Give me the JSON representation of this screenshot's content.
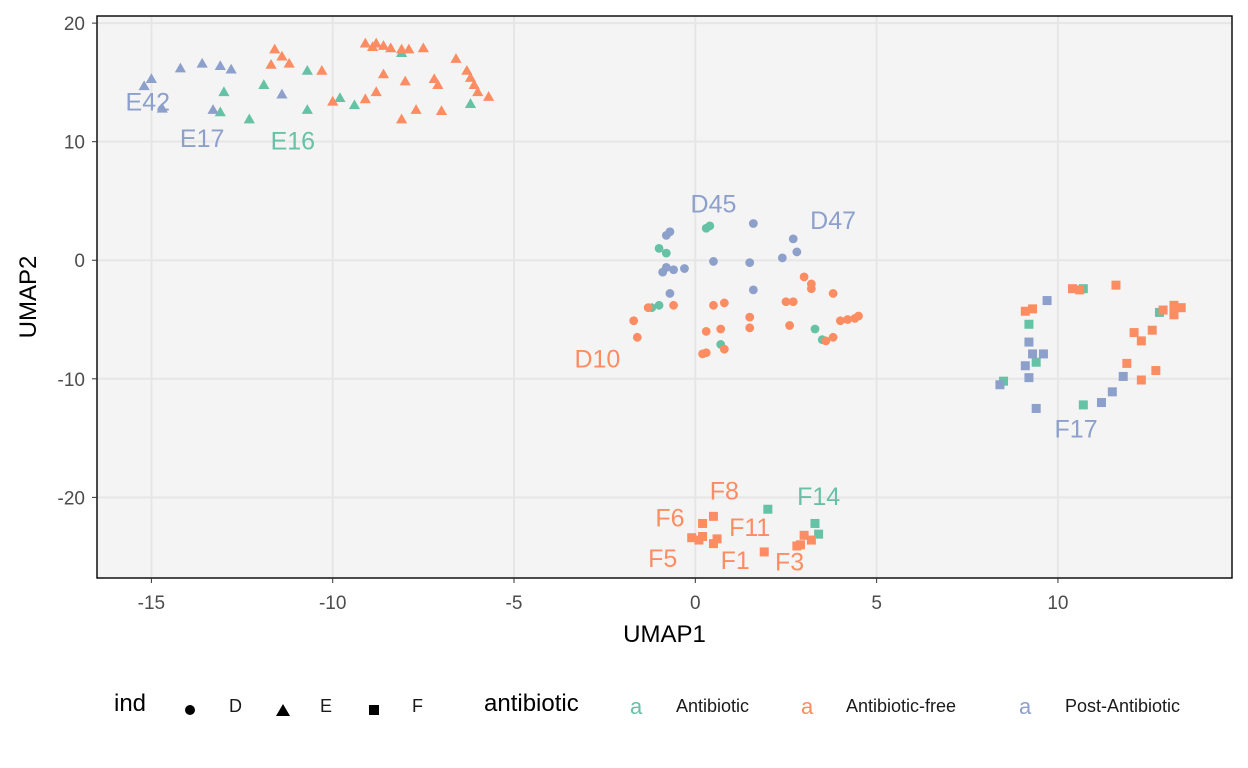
{
  "colors": {
    "Antibiotic": "#66c2a5",
    "Antibiotic-free": "#fc8d62",
    "Post-Antibiotic": "#8da0cb",
    "panel_bg": "#f4f4f4",
    "grid": "#e6e6e6"
  },
  "chart_data": {
    "type": "scatter",
    "title": "",
    "xlabel": "UMAP1",
    "ylabel": "UMAP2",
    "xlim": [
      -16.5,
      14.8
    ],
    "ylim": [
      -26.8,
      20.6
    ],
    "xticks": [
      -15,
      -10,
      -5,
      0,
      5,
      10
    ],
    "yticks": [
      20,
      10,
      0,
      -10,
      -20
    ],
    "xtick_labels": [
      "-15",
      "-10",
      "-5",
      "0",
      "5",
      "10"
    ],
    "ytick_labels": [
      "20",
      "10",
      "0",
      "-10",
      "-20"
    ],
    "grid": true,
    "legend_position": "bottom",
    "shape_legend": {
      "title": "ind",
      "entries": [
        "D",
        "E",
        "F"
      ]
    },
    "color_legend": {
      "title": "antibiotic",
      "key_glyph": "a",
      "entries": [
        "Antibiotic",
        "Antibiotic-free",
        "Post-Antibiotic"
      ]
    },
    "points": [
      {
        "x": 0.4,
        "y": 2.9,
        "ind": "D",
        "group": "Antibiotic"
      },
      {
        "x": 0.3,
        "y": 2.7,
        "ind": "D",
        "group": "Antibiotic"
      },
      {
        "x": -1.0,
        "y": 1.0,
        "ind": "D",
        "group": "Antibiotic"
      },
      {
        "x": -0.8,
        "y": 0.6,
        "ind": "D",
        "group": "Antibiotic"
      },
      {
        "x": -1.0,
        "y": -3.8,
        "ind": "D",
        "group": "Antibiotic"
      },
      {
        "x": -1.2,
        "y": -4.0,
        "ind": "D",
        "group": "Antibiotic"
      },
      {
        "x": 0.7,
        "y": -7.1,
        "ind": "D",
        "group": "Antibiotic"
      },
      {
        "x": 3.3,
        "y": -5.8,
        "ind": "D",
        "group": "Antibiotic"
      },
      {
        "x": 3.5,
        "y": -6.7,
        "ind": "D",
        "group": "Antibiotic"
      },
      {
        "x": 1.6,
        "y": 3.1,
        "ind": "D",
        "group": "Post-Antibiotic"
      },
      {
        "x": -0.7,
        "y": 2.4,
        "ind": "D",
        "group": "Post-Antibiotic"
      },
      {
        "x": -0.8,
        "y": 2.1,
        "ind": "D",
        "group": "Post-Antibiotic"
      },
      {
        "x": 2.7,
        "y": 1.8,
        "ind": "D",
        "group": "Post-Antibiotic"
      },
      {
        "x": 2.8,
        "y": 0.7,
        "ind": "D",
        "group": "Post-Antibiotic"
      },
      {
        "x": 2.4,
        "y": 0.2,
        "ind": "D",
        "group": "Post-Antibiotic"
      },
      {
        "x": 0.5,
        "y": -0.1,
        "ind": "D",
        "group": "Post-Antibiotic"
      },
      {
        "x": 1.5,
        "y": -0.2,
        "ind": "D",
        "group": "Post-Antibiotic"
      },
      {
        "x": -0.8,
        "y": -0.6,
        "ind": "D",
        "group": "Post-Antibiotic"
      },
      {
        "x": -0.6,
        "y": -0.8,
        "ind": "D",
        "group": "Post-Antibiotic"
      },
      {
        "x": -0.3,
        "y": -0.7,
        "ind": "D",
        "group": "Post-Antibiotic"
      },
      {
        "x": -0.9,
        "y": -1.0,
        "ind": "D",
        "group": "Post-Antibiotic"
      },
      {
        "x": -0.7,
        "y": -2.8,
        "ind": "D",
        "group": "Post-Antibiotic"
      },
      {
        "x": 1.6,
        "y": -2.5,
        "ind": "D",
        "group": "Post-Antibiotic"
      },
      {
        "x": 3.0,
        "y": -1.4,
        "ind": "D",
        "group": "Antibiotic-free"
      },
      {
        "x": 3.2,
        "y": -2.0,
        "ind": "D",
        "group": "Antibiotic-free"
      },
      {
        "x": 3.2,
        "y": -2.4,
        "ind": "D",
        "group": "Antibiotic-free"
      },
      {
        "x": 3.8,
        "y": -2.8,
        "ind": "D",
        "group": "Antibiotic-free"
      },
      {
        "x": 2.5,
        "y": -3.5,
        "ind": "D",
        "group": "Antibiotic-free"
      },
      {
        "x": 2.7,
        "y": -3.5,
        "ind": "D",
        "group": "Antibiotic-free"
      },
      {
        "x": 0.8,
        "y": -3.6,
        "ind": "D",
        "group": "Antibiotic-free"
      },
      {
        "x": 0.5,
        "y": -3.8,
        "ind": "D",
        "group": "Antibiotic-free"
      },
      {
        "x": -0.6,
        "y": -3.8,
        "ind": "D",
        "group": "Antibiotic-free"
      },
      {
        "x": -1.3,
        "y": -4.0,
        "ind": "D",
        "group": "Antibiotic-free"
      },
      {
        "x": 1.5,
        "y": -4.8,
        "ind": "D",
        "group": "Antibiotic-free"
      },
      {
        "x": -1.7,
        "y": -5.1,
        "ind": "D",
        "group": "Antibiotic-free"
      },
      {
        "x": 4.5,
        "y": -4.7,
        "ind": "D",
        "group": "Antibiotic-free"
      },
      {
        "x": 4.4,
        "y": -4.9,
        "ind": "D",
        "group": "Antibiotic-free"
      },
      {
        "x": 4.2,
        "y": -5.0,
        "ind": "D",
        "group": "Antibiotic-free"
      },
      {
        "x": 4.0,
        "y": -5.1,
        "ind": "D",
        "group": "Antibiotic-free"
      },
      {
        "x": 2.6,
        "y": -5.5,
        "ind": "D",
        "group": "Antibiotic-free"
      },
      {
        "x": 1.5,
        "y": -5.7,
        "ind": "D",
        "group": "Antibiotic-free"
      },
      {
        "x": 0.7,
        "y": -5.8,
        "ind": "D",
        "group": "Antibiotic-free"
      },
      {
        "x": 0.3,
        "y": -6.0,
        "ind": "D",
        "group": "Antibiotic-free"
      },
      {
        "x": 3.8,
        "y": -6.5,
        "ind": "D",
        "group": "Antibiotic-free"
      },
      {
        "x": 3.6,
        "y": -6.8,
        "ind": "D",
        "group": "Antibiotic-free"
      },
      {
        "x": -1.6,
        "y": -6.5,
        "ind": "D",
        "group": "Antibiotic-free"
      },
      {
        "x": 0.8,
        "y": -7.5,
        "ind": "D",
        "group": "Antibiotic-free"
      },
      {
        "x": 0.3,
        "y": -7.8,
        "ind": "D",
        "group": "Antibiotic-free"
      },
      {
        "x": 0.2,
        "y": -7.9,
        "ind": "D",
        "group": "Antibiotic-free"
      },
      {
        "x": -8.1,
        "y": 17.5,
        "ind": "E",
        "group": "Antibiotic"
      },
      {
        "x": -10.7,
        "y": 16.0,
        "ind": "E",
        "group": "Antibiotic"
      },
      {
        "x": -11.9,
        "y": 14.8,
        "ind": "E",
        "group": "Antibiotic"
      },
      {
        "x": -13.0,
        "y": 14.2,
        "ind": "E",
        "group": "Antibiotic"
      },
      {
        "x": -9.8,
        "y": 13.7,
        "ind": "E",
        "group": "Antibiotic"
      },
      {
        "x": -9.4,
        "y": 13.1,
        "ind": "E",
        "group": "Antibiotic"
      },
      {
        "x": -6.2,
        "y": 13.2,
        "ind": "E",
        "group": "Antibiotic"
      },
      {
        "x": -10.7,
        "y": 12.7,
        "ind": "E",
        "group": "Antibiotic"
      },
      {
        "x": -13.1,
        "y": 12.5,
        "ind": "E",
        "group": "Antibiotic"
      },
      {
        "x": -12.3,
        "y": 11.9,
        "ind": "E",
        "group": "Antibiotic"
      },
      {
        "x": -13.6,
        "y": 16.6,
        "ind": "E",
        "group": "Post-Antibiotic"
      },
      {
        "x": -14.2,
        "y": 16.2,
        "ind": "E",
        "group": "Post-Antibiotic"
      },
      {
        "x": -13.1,
        "y": 16.4,
        "ind": "E",
        "group": "Post-Antibiotic"
      },
      {
        "x": -12.8,
        "y": 16.1,
        "ind": "E",
        "group": "Post-Antibiotic"
      },
      {
        "x": -15.0,
        "y": 15.3,
        "ind": "E",
        "group": "Post-Antibiotic"
      },
      {
        "x": -15.2,
        "y": 14.7,
        "ind": "E",
        "group": "Post-Antibiotic"
      },
      {
        "x": -11.4,
        "y": 14.0,
        "ind": "E",
        "group": "Post-Antibiotic"
      },
      {
        "x": -14.7,
        "y": 12.8,
        "ind": "E",
        "group": "Post-Antibiotic"
      },
      {
        "x": -13.3,
        "y": 12.7,
        "ind": "E",
        "group": "Post-Antibiotic"
      },
      {
        "x": -11.6,
        "y": 17.8,
        "ind": "E",
        "group": "Antibiotic-free"
      },
      {
        "x": -11.4,
        "y": 17.2,
        "ind": "E",
        "group": "Antibiotic-free"
      },
      {
        "x": -11.7,
        "y": 16.5,
        "ind": "E",
        "group": "Antibiotic-free"
      },
      {
        "x": -11.2,
        "y": 16.6,
        "ind": "E",
        "group": "Antibiotic-free"
      },
      {
        "x": -9.1,
        "y": 18.3,
        "ind": "E",
        "group": "Antibiotic-free"
      },
      {
        "x": -8.9,
        "y": 18.0,
        "ind": "E",
        "group": "Antibiotic-free"
      },
      {
        "x": -8.8,
        "y": 18.3,
        "ind": "E",
        "group": "Antibiotic-free"
      },
      {
        "x": -8.6,
        "y": 18.1,
        "ind": "E",
        "group": "Antibiotic-free"
      },
      {
        "x": -8.4,
        "y": 17.9,
        "ind": "E",
        "group": "Antibiotic-free"
      },
      {
        "x": -8.1,
        "y": 17.8,
        "ind": "E",
        "group": "Antibiotic-free"
      },
      {
        "x": -7.9,
        "y": 17.8,
        "ind": "E",
        "group": "Antibiotic-free"
      },
      {
        "x": -7.5,
        "y": 17.9,
        "ind": "E",
        "group": "Antibiotic-free"
      },
      {
        "x": -6.6,
        "y": 17.0,
        "ind": "E",
        "group": "Antibiotic-free"
      },
      {
        "x": -10.3,
        "y": 16.0,
        "ind": "E",
        "group": "Antibiotic-free"
      },
      {
        "x": -8.6,
        "y": 15.7,
        "ind": "E",
        "group": "Antibiotic-free"
      },
      {
        "x": -6.3,
        "y": 16.0,
        "ind": "E",
        "group": "Antibiotic-free"
      },
      {
        "x": -6.2,
        "y": 15.4,
        "ind": "E",
        "group": "Antibiotic-free"
      },
      {
        "x": -7.2,
        "y": 15.3,
        "ind": "E",
        "group": "Antibiotic-free"
      },
      {
        "x": -8.0,
        "y": 15.1,
        "ind": "E",
        "group": "Antibiotic-free"
      },
      {
        "x": -7.1,
        "y": 14.8,
        "ind": "E",
        "group": "Antibiotic-free"
      },
      {
        "x": -6.1,
        "y": 14.8,
        "ind": "E",
        "group": "Antibiotic-free"
      },
      {
        "x": -8.8,
        "y": 14.2,
        "ind": "E",
        "group": "Antibiotic-free"
      },
      {
        "x": -6.0,
        "y": 14.2,
        "ind": "E",
        "group": "Antibiotic-free"
      },
      {
        "x": -5.7,
        "y": 13.8,
        "ind": "E",
        "group": "Antibiotic-free"
      },
      {
        "x": -10.0,
        "y": 13.4,
        "ind": "E",
        "group": "Antibiotic-free"
      },
      {
        "x": -9.1,
        "y": 13.6,
        "ind": "E",
        "group": "Antibiotic-free"
      },
      {
        "x": -7.7,
        "y": 12.7,
        "ind": "E",
        "group": "Antibiotic-free"
      },
      {
        "x": -7.0,
        "y": 12.6,
        "ind": "E",
        "group": "Antibiotic-free"
      },
      {
        "x": -8.1,
        "y": 11.9,
        "ind": "E",
        "group": "Antibiotic-free"
      },
      {
        "x": 10.7,
        "y": -2.4,
        "ind": "F",
        "group": "Antibiotic"
      },
      {
        "x": 12.8,
        "y": -4.4,
        "ind": "F",
        "group": "Antibiotic"
      },
      {
        "x": 9.2,
        "y": -5.4,
        "ind": "F",
        "group": "Antibiotic"
      },
      {
        "x": 9.4,
        "y": -8.6,
        "ind": "F",
        "group": "Antibiotic"
      },
      {
        "x": 8.5,
        "y": -10.2,
        "ind": "F",
        "group": "Antibiotic"
      },
      {
        "x": 10.7,
        "y": -12.2,
        "ind": "F",
        "group": "Antibiotic"
      },
      {
        "x": 2.0,
        "y": -21.0,
        "ind": "F",
        "group": "Antibiotic"
      },
      {
        "x": 3.3,
        "y": -22.2,
        "ind": "F",
        "group": "Antibiotic"
      },
      {
        "x": 3.4,
        "y": -23.1,
        "ind": "F",
        "group": "Antibiotic"
      },
      {
        "x": 9.7,
        "y": -3.4,
        "ind": "F",
        "group": "Post-Antibiotic"
      },
      {
        "x": 9.2,
        "y": -6.9,
        "ind": "F",
        "group": "Post-Antibiotic"
      },
      {
        "x": 9.3,
        "y": -7.9,
        "ind": "F",
        "group": "Post-Antibiotic"
      },
      {
        "x": 9.6,
        "y": -7.9,
        "ind": "F",
        "group": "Post-Antibiotic"
      },
      {
        "x": 9.1,
        "y": -8.9,
        "ind": "F",
        "group": "Post-Antibiotic"
      },
      {
        "x": 9.2,
        "y": -9.9,
        "ind": "F",
        "group": "Post-Antibiotic"
      },
      {
        "x": 11.8,
        "y": -9.8,
        "ind": "F",
        "group": "Post-Antibiotic"
      },
      {
        "x": 8.4,
        "y": -10.5,
        "ind": "F",
        "group": "Post-Antibiotic"
      },
      {
        "x": 11.5,
        "y": -11.1,
        "ind": "F",
        "group": "Post-Antibiotic"
      },
      {
        "x": 11.2,
        "y": -12.0,
        "ind": "F",
        "group": "Post-Antibiotic"
      },
      {
        "x": 9.4,
        "y": -12.5,
        "ind": "F",
        "group": "Post-Antibiotic"
      },
      {
        "x": 10.4,
        "y": -2.4,
        "ind": "F",
        "group": "Antibiotic-free"
      },
      {
        "x": 10.6,
        "y": -2.5,
        "ind": "F",
        "group": "Antibiotic-free"
      },
      {
        "x": 11.6,
        "y": -2.1,
        "ind": "F",
        "group": "Antibiotic-free"
      },
      {
        "x": 9.3,
        "y": -4.1,
        "ind": "F",
        "group": "Antibiotic-free"
      },
      {
        "x": 9.1,
        "y": -4.3,
        "ind": "F",
        "group": "Antibiotic-free"
      },
      {
        "x": 13.2,
        "y": -3.8,
        "ind": "F",
        "group": "Antibiotic-free"
      },
      {
        "x": 13.4,
        "y": -4.0,
        "ind": "F",
        "group": "Antibiotic-free"
      },
      {
        "x": 12.9,
        "y": -4.2,
        "ind": "F",
        "group": "Antibiotic-free"
      },
      {
        "x": 13.2,
        "y": -4.4,
        "ind": "F",
        "group": "Antibiotic-free"
      },
      {
        "x": 13.2,
        "y": -4.6,
        "ind": "F",
        "group": "Antibiotic-free"
      },
      {
        "x": 12.6,
        "y": -5.9,
        "ind": "F",
        "group": "Antibiotic-free"
      },
      {
        "x": 12.1,
        "y": -6.1,
        "ind": "F",
        "group": "Antibiotic-free"
      },
      {
        "x": 12.3,
        "y": -6.8,
        "ind": "F",
        "group": "Antibiotic-free"
      },
      {
        "x": 11.9,
        "y": -8.7,
        "ind": "F",
        "group": "Antibiotic-free"
      },
      {
        "x": 12.7,
        "y": -9.3,
        "ind": "F",
        "group": "Antibiotic-free"
      },
      {
        "x": 12.3,
        "y": -10.1,
        "ind": "F",
        "group": "Antibiotic-free"
      },
      {
        "x": 0.5,
        "y": -21.6,
        "ind": "F",
        "group": "Antibiotic-free"
      },
      {
        "x": 0.2,
        "y": -22.2,
        "ind": "F",
        "group": "Antibiotic-free"
      },
      {
        "x": 0.2,
        "y": -23.3,
        "ind": "F",
        "group": "Antibiotic-free"
      },
      {
        "x": -0.1,
        "y": -23.4,
        "ind": "F",
        "group": "Antibiotic-free"
      },
      {
        "x": 0.1,
        "y": -23.6,
        "ind": "F",
        "group": "Antibiotic-free"
      },
      {
        "x": 0.6,
        "y": -23.5,
        "ind": "F",
        "group": "Antibiotic-free"
      },
      {
        "x": 0.5,
        "y": -23.9,
        "ind": "F",
        "group": "Antibiotic-free"
      },
      {
        "x": 3.0,
        "y": -23.2,
        "ind": "F",
        "group": "Antibiotic-free"
      },
      {
        "x": 3.2,
        "y": -23.6,
        "ind": "F",
        "group": "Antibiotic-free"
      },
      {
        "x": 2.9,
        "y": -24.0,
        "ind": "F",
        "group": "Antibiotic-free"
      },
      {
        "x": 2.8,
        "y": -24.1,
        "ind": "F",
        "group": "Antibiotic-free"
      },
      {
        "x": 1.9,
        "y": -24.6,
        "ind": "F",
        "group": "Antibiotic-free"
      }
    ],
    "labels": [
      {
        "text": "E42",
        "x": -15.1,
        "y": 13.4,
        "group": "Post-Antibiotic"
      },
      {
        "text": "E17",
        "x": -13.6,
        "y": 10.3,
        "group": "Post-Antibiotic"
      },
      {
        "text": "E16",
        "x": -11.1,
        "y": 10.1,
        "group": "Antibiotic"
      },
      {
        "x": 0.5,
        "y": 4.8,
        "text": "D45",
        "group": "Post-Antibiotic"
      },
      {
        "x": 3.8,
        "y": 3.4,
        "text": "D47",
        "group": "Post-Antibiotic"
      },
      {
        "x": -2.7,
        "y": -8.3,
        "text": "D10",
        "group": "Antibiotic-free"
      },
      {
        "x": 10.5,
        "y": -14.2,
        "text": "F17",
        "group": "Post-Antibiotic"
      },
      {
        "x": 0.8,
        "y": -19.4,
        "text": "F8",
        "group": "Antibiotic-free"
      },
      {
        "x": 3.4,
        "y": -19.9,
        "text": "F14",
        "group": "Antibiotic"
      },
      {
        "x": -0.7,
        "y": -21.7,
        "text": "F6",
        "group": "Antibiotic-free"
      },
      {
        "x": 1.5,
        "y": -22.5,
        "text": "F11",
        "group": "Antibiotic-free"
      },
      {
        "x": -0.9,
        "y": -25.1,
        "text": "F5",
        "group": "Antibiotic-free"
      },
      {
        "x": 1.1,
        "y": -25.3,
        "text": "F1",
        "group": "Antibiotic-free"
      },
      {
        "x": 2.6,
        "y": -25.4,
        "text": "F3",
        "group": "Antibiotic-free"
      }
    ]
  }
}
